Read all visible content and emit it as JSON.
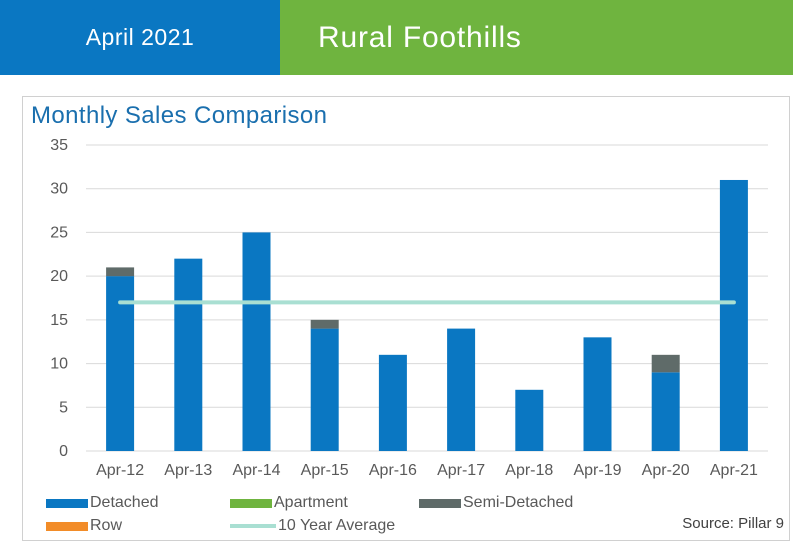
{
  "header": {
    "date_label": "April 2021",
    "region_label": "Rural Foothills",
    "date_bg": "#0a77c2",
    "region_bg": "#6fb43f"
  },
  "chart_data": {
    "type": "bar",
    "stacked": true,
    "title": "Monthly Sales Comparison",
    "categories": [
      "Apr-12",
      "Apr-13",
      "Apr-14",
      "Apr-15",
      "Apr-16",
      "Apr-17",
      "Apr-18",
      "Apr-19",
      "Apr-20",
      "Apr-21"
    ],
    "series": [
      {
        "name": "Detached",
        "color": "#0a77c2",
        "values": [
          20,
          22,
          25,
          14,
          11,
          14,
          7,
          13,
          9,
          31
        ]
      },
      {
        "name": "Apartment",
        "color": "#6fb43f",
        "values": [
          0,
          0,
          0,
          0,
          0,
          0,
          0,
          0,
          0,
          0
        ]
      },
      {
        "name": "Semi-Detached",
        "color": "#5f6b69",
        "values": [
          1,
          0,
          0,
          1,
          0,
          0,
          0,
          0,
          2,
          0
        ]
      },
      {
        "name": "Row",
        "color": "#f28c28",
        "values": [
          0,
          0,
          0,
          0,
          0,
          0,
          0,
          0,
          0,
          0
        ]
      }
    ],
    "line": {
      "name": "10 Year Average",
      "color": "#a9dfd2",
      "value": 17
    },
    "ylim": [
      0,
      35
    ],
    "yticks": [
      0,
      5,
      10,
      15,
      20,
      25,
      30,
      35
    ],
    "grid": true,
    "legend_position": "bottom"
  },
  "source": "Source: Pillar 9"
}
